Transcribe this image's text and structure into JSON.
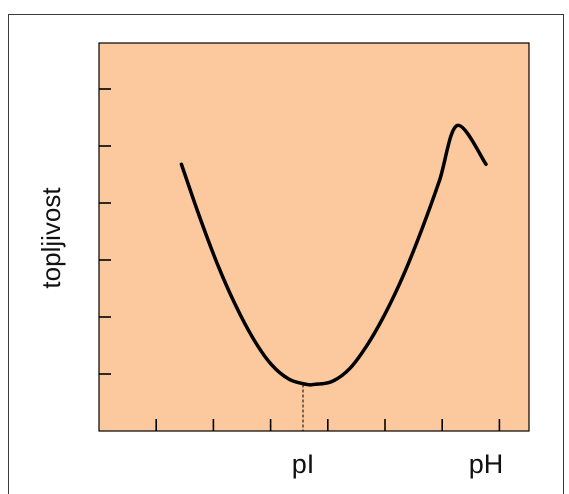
{
  "chart_data": {
    "type": "line",
    "title": "",
    "xlabel": "pH",
    "ylabel": "topljivost",
    "annotations": [
      {
        "text": "pI",
        "x": 6.0
      }
    ],
    "xlim": [
      0,
      12
    ],
    "ylim": [
      0,
      8
    ],
    "x_tick_count": 12,
    "y_tick_count": 7,
    "grid": false,
    "series": [
      {
        "x": [
          2.3,
          2.8,
          3.3,
          3.8,
          4.3,
          4.8,
          5.3,
          5.8,
          6.0,
          6.5,
          7.0,
          7.5,
          8.0,
          8.5,
          9.0,
          9.5,
          10.0,
          10.8
        ],
        "values": [
          5.5,
          4.43,
          3.45,
          2.61,
          1.91,
          1.38,
          1.07,
          0.96,
          0.96,
          1.02,
          1.29,
          1.79,
          2.44,
          3.22,
          4.14,
          5.16,
          6.3,
          5.5
        ]
      }
    ],
    "colors": {
      "background": "#fcc89e",
      "line": "#000000",
      "axis": "#000000"
    }
  }
}
